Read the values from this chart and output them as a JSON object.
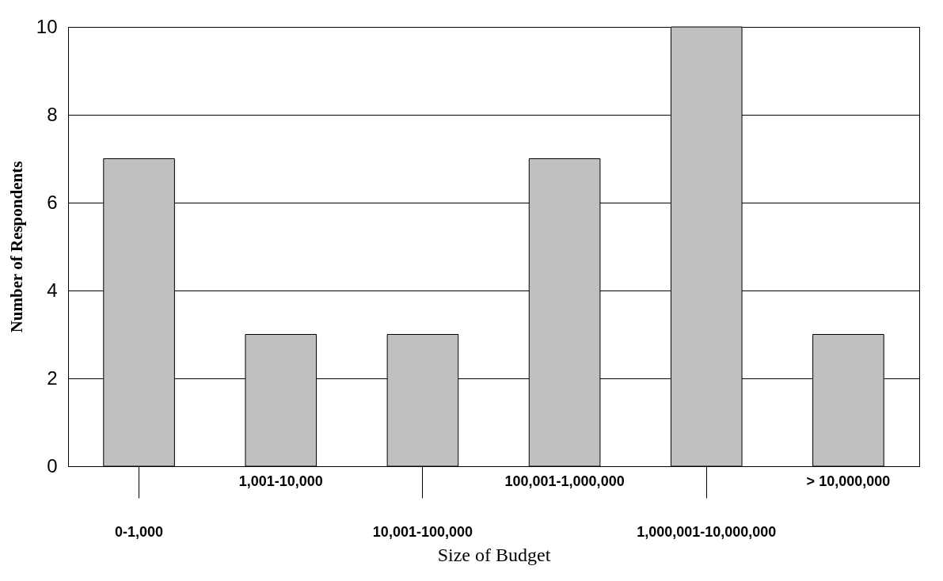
{
  "chart_data": {
    "type": "bar",
    "xlabel": "Size of Budget",
    "ylabel": "Number of Respondents",
    "categories": [
      "0-1,000",
      "1,001-10,000",
      "10,001-100,000",
      "100,001-1,000,000",
      "1,000,001-10,000,000",
      "> 10,000,000"
    ],
    "values": [
      7,
      3,
      3,
      7,
      10,
      3
    ],
    "color": "#c0c0c0",
    "ylim": [
      0,
      10
    ],
    "yticks": [
      0,
      2,
      4,
      6,
      8,
      10
    ],
    "grid": "y"
  }
}
